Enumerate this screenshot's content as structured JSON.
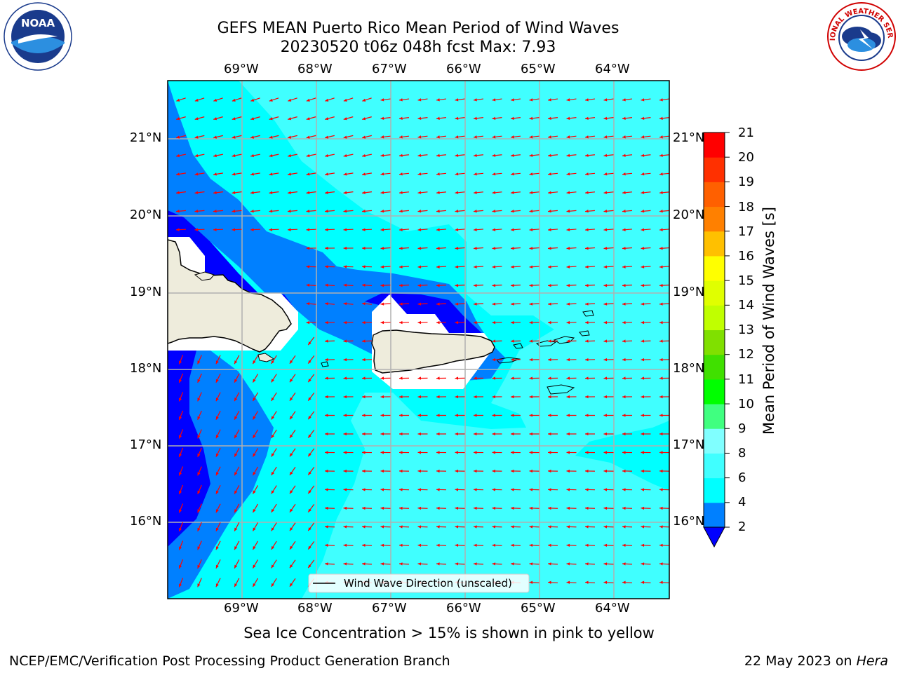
{
  "title": {
    "line1": "GEFS MEAN Puerto Rico Mean Period of Wind Waves",
    "line2": "20230520 t06z 048h fcst   Max: 7.93"
  },
  "map": {
    "lon_labels": [
      "69°W",
      "68°W",
      "67°W",
      "66°W",
      "65°W",
      "64°W"
    ],
    "lat_labels": [
      "21°N",
      "20°N",
      "19°N",
      "18°N",
      "17°N",
      "16°N"
    ],
    "legend_label": "Wind Wave Direction (unscaled)",
    "arrow_color": "#ff0000",
    "coast_color": "#000000",
    "land_color": "#eeecdc"
  },
  "colorbar": {
    "label": "Mean Period of Wind Waves [s]",
    "ticks": [
      "2",
      "4",
      "6",
      "8",
      "9",
      "10",
      "11",
      "12",
      "13",
      "14",
      "15",
      "16",
      "17",
      "18",
      "19",
      "20",
      "21"
    ],
    "colors": [
      "#0000ff",
      "#0080ff",
      "#00ffff",
      "#40ffff",
      "#80ffff",
      "#40ff80",
      "#00ff00",
      "#40e000",
      "#80e000",
      "#c0ff00",
      "#e0ff00",
      "#ffff00",
      "#ffc000",
      "#ff8000",
      "#ff6000",
      "#ff3000",
      "#ff0000"
    ]
  },
  "footer": {
    "note": "Sea Ice Concentration > 15% is shown in pink to yellow",
    "credit": "NCEP/EMC/Verification Post Processing Product Generation Branch",
    "date": "22 May 2023 on ",
    "machine": "Hera"
  },
  "logos": {
    "noaa": "NOAA",
    "nws": "NATIONAL WEATHER SERVICE"
  }
}
